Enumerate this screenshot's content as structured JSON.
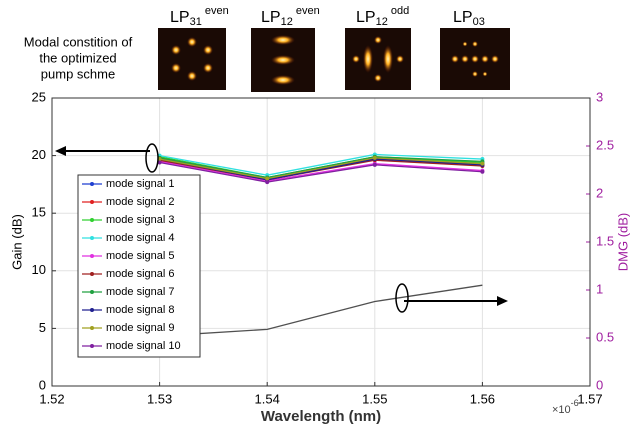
{
  "chart_data": {
    "type": "line",
    "xlabel": "Wavelength (nm)",
    "ylabel": "Gain (dB)",
    "y2label": "DMG (dB)",
    "x_multiplier": {
      "base": "×10",
      "exponent": "-6"
    },
    "x": [
      1.53,
      1.54,
      1.55,
      1.56
    ],
    "xlim": [
      1.52,
      1.57
    ],
    "xticks": [
      1.52,
      1.53,
      1.54,
      1.55,
      1.56,
      1.57
    ],
    "ylim": [
      0,
      25
    ],
    "yticks": [
      0,
      5,
      10,
      15,
      20,
      25
    ],
    "y2lim": [
      0,
      3
    ],
    "y2ticks": [
      0,
      0.5,
      1,
      1.5,
      2,
      2.5,
      3
    ],
    "grid": true,
    "legend": "left",
    "series": [
      {
        "name": "mode signal 1",
        "color": "#1f3fd0",
        "values": [
          19.8,
          18.0,
          19.8,
          19.3
        ]
      },
      {
        "name": "mode signal 2",
        "color": "#e02020",
        "values": [
          19.6,
          17.9,
          19.7,
          19.2
        ]
      },
      {
        "name": "mode signal 3",
        "color": "#30d030",
        "values": [
          19.9,
          18.1,
          19.9,
          19.4
        ]
      },
      {
        "name": "mode signal 4",
        "color": "#30e0e0",
        "values": [
          20.0,
          18.3,
          20.1,
          19.7
        ]
      },
      {
        "name": "mode signal 5",
        "color": "#e030e0",
        "values": [
          19.5,
          17.8,
          19.3,
          18.7
        ]
      },
      {
        "name": "mode signal 6",
        "color": "#a02020",
        "values": [
          19.6,
          17.9,
          19.6,
          19.1
        ]
      },
      {
        "name": "mode signal 7",
        "color": "#20a040",
        "values": [
          19.8,
          18.1,
          19.9,
          19.5
        ]
      },
      {
        "name": "mode signal 8",
        "color": "#202090",
        "values": [
          19.7,
          17.9,
          19.7,
          19.2
        ]
      },
      {
        "name": "mode signal 9",
        "color": "#a0a020",
        "values": [
          19.7,
          18.0,
          19.8,
          19.3
        ]
      },
      {
        "name": "mode signal 10",
        "color": "#8020a0",
        "values": [
          19.4,
          17.7,
          19.2,
          18.6
        ]
      },
      {
        "color": "#505050",
        "axis": "y2",
        "values": [
          0.52,
          0.59,
          0.88,
          1.05
        ]
      }
    ]
  },
  "mode_panel": {
    "caption": [
      "Modal constition of",
      "the optimized",
      "pump schme"
    ],
    "modes": [
      {
        "base": "LP",
        "sub": "31",
        "sup": "even"
      },
      {
        "base": "LP",
        "sub": "12",
        "sup": "even"
      },
      {
        "base": "LP",
        "sub": "12",
        "sup": "odd"
      },
      {
        "base": "LP",
        "sub": "03"
      }
    ]
  }
}
